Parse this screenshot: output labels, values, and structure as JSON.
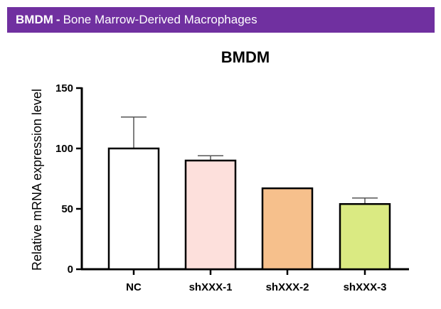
{
  "banner": {
    "abbr": "BMDM",
    "separator": "-",
    "full_name": "Bone Marrow-Derived Macrophages",
    "background": "#7030a0"
  },
  "chart_data": {
    "type": "bar",
    "title": "BMDM",
    "xlabel": "",
    "ylabel": "Relative mRNA expression level",
    "ylim": [
      0,
      150
    ],
    "yticks": [
      0,
      50,
      100,
      150
    ],
    "categories": [
      "NC",
      "shXXX-1",
      "shXXX-2",
      "shXXX-3"
    ],
    "values": [
      100,
      90,
      67,
      54
    ],
    "errors": [
      26,
      4,
      0,
      5
    ],
    "colors": [
      "#ffffff",
      "#fde0dc",
      "#f6c08c",
      "#daea82"
    ]
  }
}
